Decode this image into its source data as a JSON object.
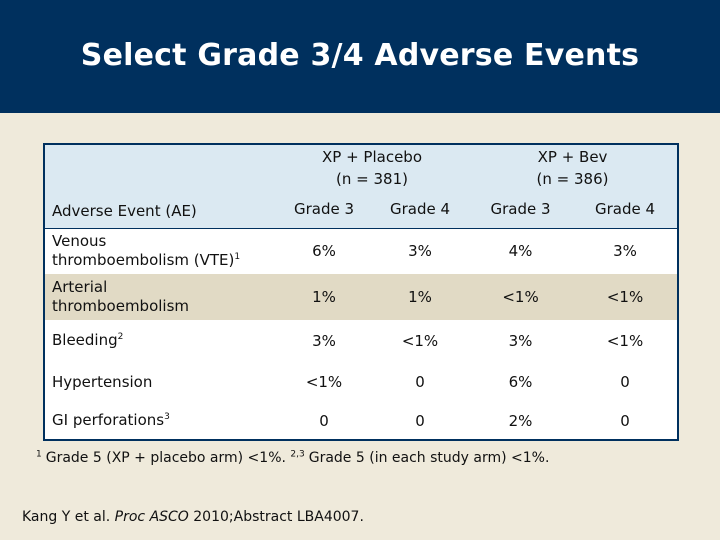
{
  "title": "Select Grade 3/4 Adverse Events",
  "table": {
    "label_header": "Adverse Event (AE)",
    "groups": [
      {
        "name": "XP + Placebo",
        "n": "(n = 381)"
      },
      {
        "name": "XP + Bev",
        "n": "(n = 386)"
      }
    ],
    "grades": [
      "Grade 3",
      "Grade 4",
      "Grade 3",
      "Grade 4"
    ],
    "rows": [
      {
        "label_line1": "Venous",
        "label_line2": "thromboembolism (VTE)",
        "sup": "1",
        "values": [
          "6%",
          "3%",
          "4%",
          "3%"
        ]
      },
      {
        "label_line1": "Arterial",
        "label_line2": "thromboembolism",
        "sup": "",
        "values": [
          "1%",
          "1%",
          "<1%",
          "<1%"
        ]
      },
      {
        "label_line1": "Bleeding",
        "label_line2": "",
        "sup": "2",
        "values": [
          "3%",
          "<1%",
          "3%",
          "<1%"
        ]
      },
      {
        "label_line1": "Hypertension",
        "label_line2": "",
        "sup": "",
        "values": [
          "<1%",
          "0",
          "6%",
          "0"
        ]
      },
      {
        "label_line1": "GI perforations",
        "label_line2": "",
        "sup": "3",
        "values": [
          "0",
          "0",
          "2%",
          "0"
        ]
      }
    ]
  },
  "footnote": {
    "sup1": "1",
    "text1": "Grade 5 (XP + placebo arm) <1%.",
    "sup2": "2,3",
    "text2": "Grade 5 (in each study arm) <1%."
  },
  "citation": {
    "prefix": "Kang Y et al. ",
    "journal": "Proc ASCO",
    "suffix": " 2010;Abstract LBA4007."
  }
}
